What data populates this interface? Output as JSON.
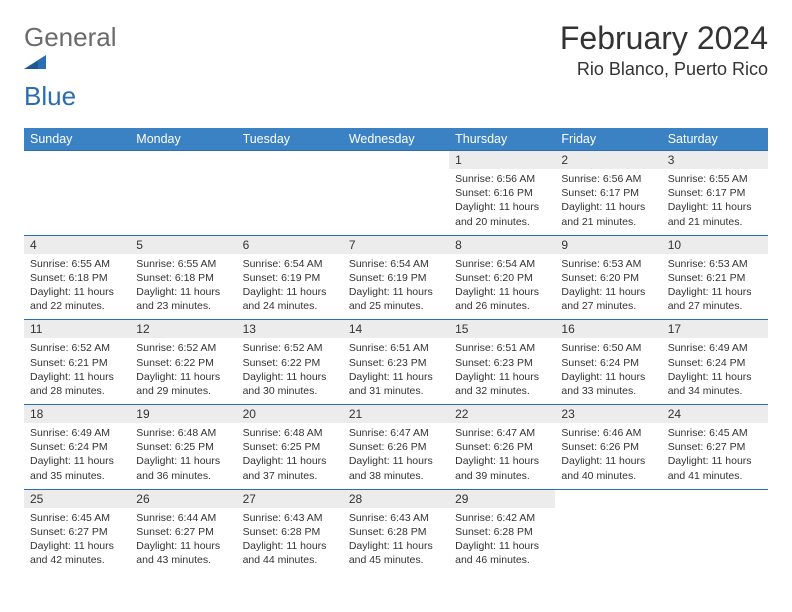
{
  "brand": {
    "general": "General",
    "blue": "Blue"
  },
  "title": "February 2024",
  "location": "Rio Blanco, Puerto Rico",
  "colors": {
    "header_bg": "#3b82c4",
    "header_text": "#ffffff",
    "daynum_bg": "#ececec",
    "border": "#2a6db0",
    "text": "#333333"
  },
  "days_of_week": [
    "Sunday",
    "Monday",
    "Tuesday",
    "Wednesday",
    "Thursday",
    "Friday",
    "Saturday"
  ],
  "weeks": [
    [
      null,
      null,
      null,
      null,
      {
        "n": "1",
        "sr": "6:56 AM",
        "ss": "6:16 PM",
        "dl": "11 hours and 20 minutes."
      },
      {
        "n": "2",
        "sr": "6:56 AM",
        "ss": "6:17 PM",
        "dl": "11 hours and 21 minutes."
      },
      {
        "n": "3",
        "sr": "6:55 AM",
        "ss": "6:17 PM",
        "dl": "11 hours and 21 minutes."
      }
    ],
    [
      {
        "n": "4",
        "sr": "6:55 AM",
        "ss": "6:18 PM",
        "dl": "11 hours and 22 minutes."
      },
      {
        "n": "5",
        "sr": "6:55 AM",
        "ss": "6:18 PM",
        "dl": "11 hours and 23 minutes."
      },
      {
        "n": "6",
        "sr": "6:54 AM",
        "ss": "6:19 PM",
        "dl": "11 hours and 24 minutes."
      },
      {
        "n": "7",
        "sr": "6:54 AM",
        "ss": "6:19 PM",
        "dl": "11 hours and 25 minutes."
      },
      {
        "n": "8",
        "sr": "6:54 AM",
        "ss": "6:20 PM",
        "dl": "11 hours and 26 minutes."
      },
      {
        "n": "9",
        "sr": "6:53 AM",
        "ss": "6:20 PM",
        "dl": "11 hours and 27 minutes."
      },
      {
        "n": "10",
        "sr": "6:53 AM",
        "ss": "6:21 PM",
        "dl": "11 hours and 27 minutes."
      }
    ],
    [
      {
        "n": "11",
        "sr": "6:52 AM",
        "ss": "6:21 PM",
        "dl": "11 hours and 28 minutes."
      },
      {
        "n": "12",
        "sr": "6:52 AM",
        "ss": "6:22 PM",
        "dl": "11 hours and 29 minutes."
      },
      {
        "n": "13",
        "sr": "6:52 AM",
        "ss": "6:22 PM",
        "dl": "11 hours and 30 minutes."
      },
      {
        "n": "14",
        "sr": "6:51 AM",
        "ss": "6:23 PM",
        "dl": "11 hours and 31 minutes."
      },
      {
        "n": "15",
        "sr": "6:51 AM",
        "ss": "6:23 PM",
        "dl": "11 hours and 32 minutes."
      },
      {
        "n": "16",
        "sr": "6:50 AM",
        "ss": "6:24 PM",
        "dl": "11 hours and 33 minutes."
      },
      {
        "n": "17",
        "sr": "6:49 AM",
        "ss": "6:24 PM",
        "dl": "11 hours and 34 minutes."
      }
    ],
    [
      {
        "n": "18",
        "sr": "6:49 AM",
        "ss": "6:24 PM",
        "dl": "11 hours and 35 minutes."
      },
      {
        "n": "19",
        "sr": "6:48 AM",
        "ss": "6:25 PM",
        "dl": "11 hours and 36 minutes."
      },
      {
        "n": "20",
        "sr": "6:48 AM",
        "ss": "6:25 PM",
        "dl": "11 hours and 37 minutes."
      },
      {
        "n": "21",
        "sr": "6:47 AM",
        "ss": "6:26 PM",
        "dl": "11 hours and 38 minutes."
      },
      {
        "n": "22",
        "sr": "6:47 AM",
        "ss": "6:26 PM",
        "dl": "11 hours and 39 minutes."
      },
      {
        "n": "23",
        "sr": "6:46 AM",
        "ss": "6:26 PM",
        "dl": "11 hours and 40 minutes."
      },
      {
        "n": "24",
        "sr": "6:45 AM",
        "ss": "6:27 PM",
        "dl": "11 hours and 41 minutes."
      }
    ],
    [
      {
        "n": "25",
        "sr": "6:45 AM",
        "ss": "6:27 PM",
        "dl": "11 hours and 42 minutes."
      },
      {
        "n": "26",
        "sr": "6:44 AM",
        "ss": "6:27 PM",
        "dl": "11 hours and 43 minutes."
      },
      {
        "n": "27",
        "sr": "6:43 AM",
        "ss": "6:28 PM",
        "dl": "11 hours and 44 minutes."
      },
      {
        "n": "28",
        "sr": "6:43 AM",
        "ss": "6:28 PM",
        "dl": "11 hours and 45 minutes."
      },
      {
        "n": "29",
        "sr": "6:42 AM",
        "ss": "6:28 PM",
        "dl": "11 hours and 46 minutes."
      },
      null,
      null
    ]
  ],
  "labels": {
    "sunrise": "Sunrise: ",
    "sunset": "Sunset: ",
    "daylight": "Daylight: "
  }
}
